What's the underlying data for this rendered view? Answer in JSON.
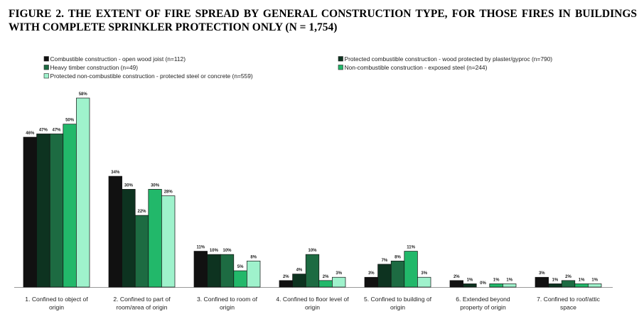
{
  "title": "FIGURE 2. THE EXTENT OF FIRE SPREAD BY GENERAL CONSTRUCTION TYPE, FOR THOSE FIRES IN BUILDINGS WITH COMPLETE SPRINKLER PROTECTION ONLY (N = 1,754)",
  "chart_data": {
    "type": "bar",
    "title": "FIGURE 2. THE EXTENT OF FIRE SPREAD BY GENERAL CONSTRUCTION TYPE, FOR THOSE FIRES IN BUILDINGS WITH COMPLETE SPRINKLER PROTECTION ONLY (N = 1,754)",
    "xlabel": "",
    "ylabel": "",
    "ylim": [
      0,
      60
    ],
    "grid": false,
    "legend_position": "top",
    "categories": [
      [
        "1. Confined to object of",
        "origin"
      ],
      [
        "2. Confined to part of",
        "room/area of origin"
      ],
      [
        "3. Confined to room of",
        "origin"
      ],
      [
        "4. Confined to floor level of",
        "origin"
      ],
      [
        "5. Confined to building of",
        "origin"
      ],
      [
        "6. Extended beyond",
        "property of origin"
      ],
      [
        "7. Confined to roof/attic",
        "space"
      ]
    ],
    "series": [
      {
        "name": "Combustible construction - open wood joist (n=112)",
        "color": "#111111",
        "values": [
          46,
          34,
          11,
          2,
          3,
          2,
          3
        ]
      },
      {
        "name": "Protected combustible construction - wood protected by plaster/gyproc (n=790)",
        "color": "#0d3320",
        "values": [
          47,
          30,
          10,
          4,
          7,
          1,
          1
        ]
      },
      {
        "name": "Heavy timber construction (n=49)",
        "color": "#1d6b42",
        "values": [
          47,
          22,
          10,
          10,
          8,
          0,
          2
        ]
      },
      {
        "name": "Non-combustible construction - exposed steel (n=244)",
        "color": "#22b86a",
        "values": [
          50,
          30,
          5,
          2,
          11,
          1,
          1
        ]
      },
      {
        "name": "Protected non-combustible construction - protected steel or concrete (n=559)",
        "color": "#9ff2cc",
        "values": [
          58,
          28,
          8,
          3,
          3,
          1,
          1
        ]
      }
    ]
  }
}
